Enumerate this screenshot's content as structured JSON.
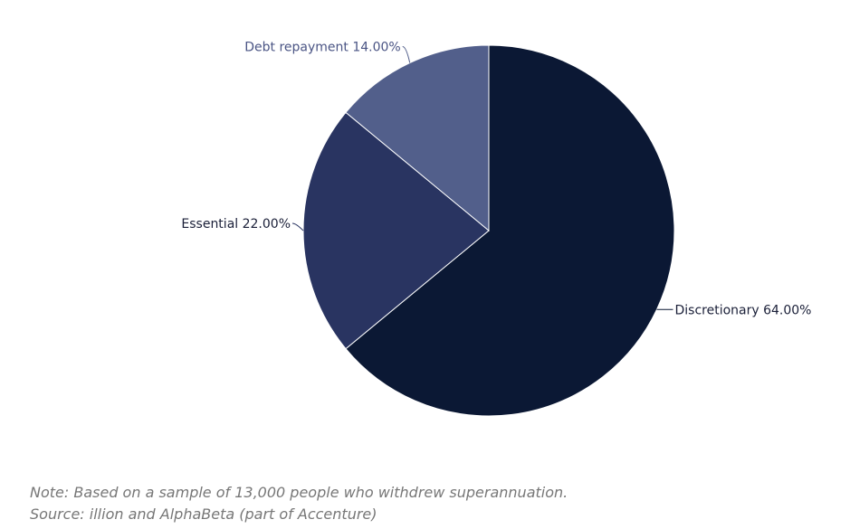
{
  "chart_data": {
    "type": "pie",
    "slices": [
      {
        "label": "Discretionary",
        "value": 64.0,
        "display": "Discretionary 64.00%",
        "color": "#0b1834"
      },
      {
        "label": "Essential",
        "value": 22.0,
        "display": "Essential 22.00%",
        "color": "#293461"
      },
      {
        "label": "Debt repayment",
        "value": 14.0,
        "display": "Debt repayment 14.00%",
        "color": "#525f8b"
      }
    ],
    "start": "12 o'clock",
    "direction": "clockwise"
  },
  "footnotes": {
    "note": "Note: Based on a sample of 13,000 people who withdrew superannuation.",
    "source": "Source: illion and AlphaBeta (part of Accenture)"
  }
}
